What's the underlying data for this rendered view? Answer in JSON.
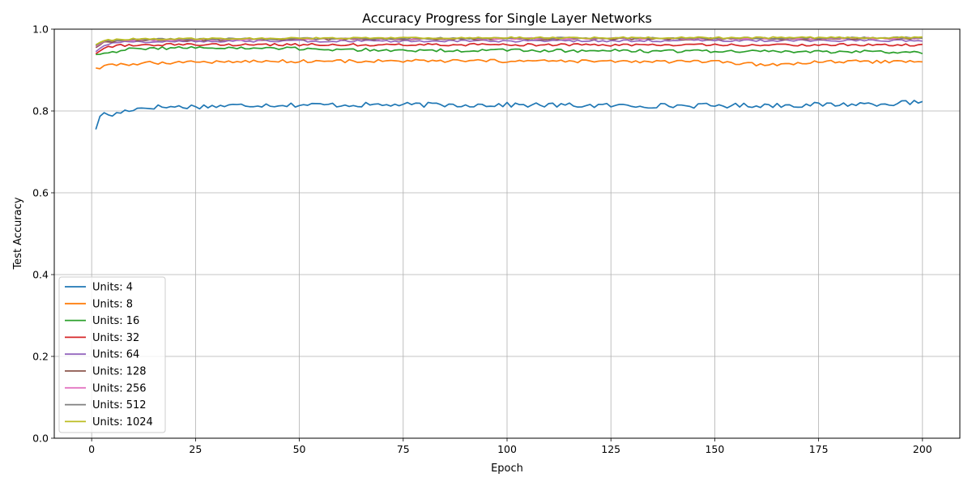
{
  "chart_data": {
    "type": "line",
    "title": "Accuracy Progress for Single Layer Networks",
    "xlabel": "Epoch",
    "ylabel": "Test Accuracy",
    "xlim": [
      -9,
      209
    ],
    "ylim": [
      0.0,
      1.0
    ],
    "x_ticks": [
      0,
      25,
      50,
      75,
      100,
      125,
      150,
      175,
      200
    ],
    "y_ticks": [
      0.0,
      0.2,
      0.4,
      0.6,
      0.8,
      1.0
    ],
    "x_tick_labels": [
      "0",
      "25",
      "50",
      "75",
      "100",
      "125",
      "150",
      "175",
      "200"
    ],
    "y_tick_labels": [
      "0.0",
      "0.2",
      "0.4",
      "0.6",
      "0.8",
      "1.0"
    ],
    "grid": true,
    "legend_position": "lower-left",
    "epochs": [
      1,
      200
    ],
    "series": [
      {
        "name": "Units: 4",
        "color": "#1f77b4",
        "keypoints": [
          [
            1,
            0.755
          ],
          [
            2,
            0.79
          ],
          [
            3,
            0.792
          ],
          [
            5,
            0.79
          ],
          [
            8,
            0.8
          ],
          [
            10,
            0.805
          ],
          [
            15,
            0.81
          ],
          [
            20,
            0.81
          ],
          [
            30,
            0.812
          ],
          [
            40,
            0.815
          ],
          [
            50,
            0.815
          ],
          [
            60,
            0.815
          ],
          [
            75,
            0.815
          ],
          [
            100,
            0.815
          ],
          [
            125,
            0.813
          ],
          [
            150,
            0.813
          ],
          [
            175,
            0.815
          ],
          [
            199,
            0.82
          ],
          [
            200,
            0.82
          ]
        ],
        "noise": 0.006
      },
      {
        "name": "Units: 8",
        "color": "#ff7f0e",
        "keypoints": [
          [
            1,
            0.905
          ],
          [
            2,
            0.905
          ],
          [
            3,
            0.91
          ],
          [
            8,
            0.914
          ],
          [
            15,
            0.918
          ],
          [
            25,
            0.92
          ],
          [
            50,
            0.922
          ],
          [
            100,
            0.922
          ],
          [
            150,
            0.92
          ],
          [
            163,
            0.912
          ],
          [
            175,
            0.92
          ],
          [
            200,
            0.921
          ]
        ],
        "noise": 0.004
      },
      {
        "name": "Units: 16",
        "color": "#2ca02c",
        "keypoints": [
          [
            1,
            0.938
          ],
          [
            3,
            0.942
          ],
          [
            8,
            0.95
          ],
          [
            20,
            0.955
          ],
          [
            50,
            0.952
          ],
          [
            75,
            0.948
          ],
          [
            100,
            0.948
          ],
          [
            150,
            0.946
          ],
          [
            200,
            0.944
          ]
        ],
        "noise": 0.004
      },
      {
        "name": "Units: 32",
        "color": "#d62728",
        "keypoints": [
          [
            1,
            0.94
          ],
          [
            3,
            0.955
          ],
          [
            6,
            0.96
          ],
          [
            15,
            0.962
          ],
          [
            30,
            0.962
          ],
          [
            50,
            0.962
          ],
          [
            100,
            0.962
          ],
          [
            150,
            0.961
          ],
          [
            200,
            0.962
          ]
        ],
        "noise": 0.003
      },
      {
        "name": "Units: 64",
        "color": "#9467bd",
        "keypoints": [
          [
            1,
            0.945
          ],
          [
            3,
            0.962
          ],
          [
            6,
            0.968
          ],
          [
            20,
            0.97
          ],
          [
            50,
            0.971
          ],
          [
            100,
            0.971
          ],
          [
            150,
            0.972
          ],
          [
            200,
            0.972
          ]
        ],
        "noise": 0.0025
      },
      {
        "name": "Units: 128",
        "color": "#8c564b",
        "keypoints": [
          [
            1,
            0.955
          ],
          [
            3,
            0.968
          ],
          [
            10,
            0.972
          ],
          [
            50,
            0.975
          ],
          [
            100,
            0.976
          ],
          [
            150,
            0.976
          ],
          [
            200,
            0.977
          ]
        ],
        "noise": 0.002
      },
      {
        "name": "Units: 256",
        "color": "#e377c2",
        "keypoints": [
          [
            1,
            0.958
          ],
          [
            3,
            0.97
          ],
          [
            10,
            0.973
          ],
          [
            50,
            0.976
          ],
          [
            100,
            0.977
          ],
          [
            150,
            0.977
          ],
          [
            200,
            0.978
          ]
        ],
        "noise": 0.002
      },
      {
        "name": "Units: 512",
        "color": "#7f7f7f",
        "keypoints": [
          [
            1,
            0.96
          ],
          [
            3,
            0.972
          ],
          [
            10,
            0.975
          ],
          [
            50,
            0.977
          ],
          [
            100,
            0.978
          ],
          [
            150,
            0.978
          ],
          [
            200,
            0.979
          ]
        ],
        "noise": 0.002
      },
      {
        "name": "Units: 1024",
        "color": "#bcbd22",
        "keypoints": [
          [
            1,
            0.962
          ],
          [
            3,
            0.973
          ],
          [
            10,
            0.976
          ],
          [
            50,
            0.978
          ],
          [
            100,
            0.979
          ],
          [
            150,
            0.979
          ],
          [
            200,
            0.98
          ]
        ],
        "noise": 0.002
      }
    ]
  }
}
